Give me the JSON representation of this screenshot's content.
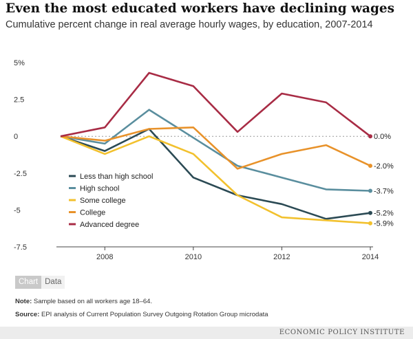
{
  "header": {
    "title": "Even the most educated workers have declining wages",
    "subtitle": "Cumulative percent change in real average hourly wages, by education, 2007-2014"
  },
  "tabs": [
    {
      "label": "Chart",
      "active": true
    },
    {
      "label": "Data",
      "active": false
    }
  ],
  "footer": {
    "note_label": "Note:",
    "note_text": " Sample based on all workers age 18–64.",
    "source_label": "Source:",
    "source_text": " EPI analysis of Current Population Survey Outgoing Rotation Group microdata",
    "brand": "ECONOMIC POLICY INSTITUTE"
  },
  "chart_data": {
    "type": "line",
    "title": "Even the most educated workers have declining wages",
    "subtitle": "Cumulative percent change in real average hourly wages, by education, 2007-2014",
    "x": [
      2007,
      2008,
      2009,
      2010,
      2011,
      2012,
      2013,
      2014
    ],
    "xticks": [
      2008,
      2010,
      2012,
      2014
    ],
    "xtick_labels": [
      "2008",
      "2010",
      "2012",
      "2014"
    ],
    "xlim": [
      2007,
      2014
    ],
    "ylim": [
      -7.5,
      5
    ],
    "yticks": [
      5,
      2.5,
      0,
      -2.5,
      -5,
      -7.5
    ],
    "ytick_labels": [
      "5%",
      "2.5",
      "0",
      "-2.5",
      "-5",
      "-7.5"
    ],
    "grid": false,
    "zero_line": "dotted",
    "legend": "lower-left",
    "series": [
      {
        "name": "Less than high school",
        "color": "#2b4a54",
        "values": [
          0,
          -1.0,
          0.5,
          -2.8,
          -4.0,
          -4.6,
          -5.6,
          -5.2
        ],
        "end_label": "-5.2%"
      },
      {
        "name": "High school",
        "color": "#5a8e9e",
        "values": [
          0,
          -0.5,
          1.8,
          -0.1,
          -2.0,
          -2.8,
          -3.6,
          -3.7
        ],
        "end_label": "-3.7%"
      },
      {
        "name": "Some college",
        "color": "#f2c12e",
        "values": [
          0,
          -1.2,
          0.0,
          -1.2,
          -4.0,
          -5.5,
          -5.7,
          -5.9
        ],
        "end_label": "-5.9%"
      },
      {
        "name": "College",
        "color": "#e8922a",
        "values": [
          0,
          -0.3,
          0.5,
          0.6,
          -2.2,
          -1.2,
          -0.6,
          -2.0
        ],
        "end_label": "-2.0%"
      },
      {
        "name": "Advanced degree",
        "color": "#a82c45",
        "values": [
          0,
          0.6,
          4.3,
          3.4,
          0.3,
          2.9,
          2.3,
          0.0
        ],
        "end_label": "0.0%"
      }
    ]
  }
}
